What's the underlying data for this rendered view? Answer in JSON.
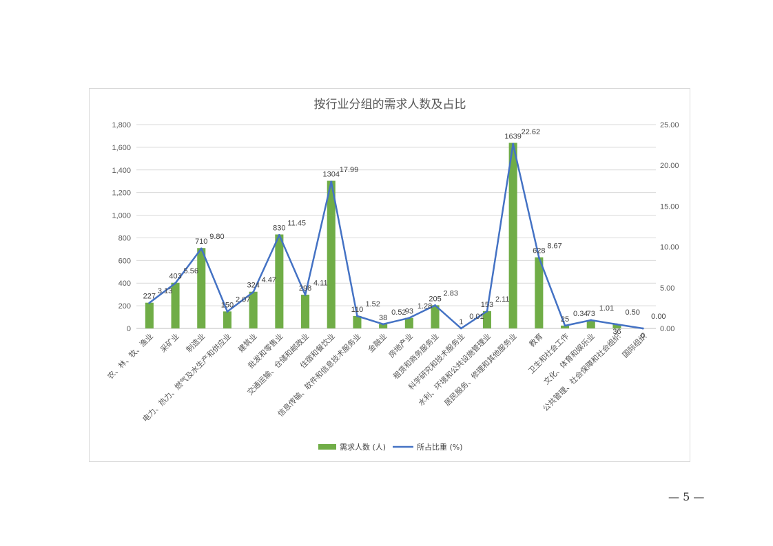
{
  "page": {
    "number": "— 5 —"
  },
  "chart_data": {
    "type": "bar",
    "title": "按行业分组的需求人数及占比",
    "categories": [
      "农、林、牧、渔业",
      "采矿业",
      "制造业",
      "电力、热力、燃气及水生产和供应业",
      "建筑业",
      "批发和零售业",
      "交通运输、仓储和邮政业",
      "住宿和餐饮业",
      "信息传输、软件和信息技术服务业",
      "金融业",
      "房地产业",
      "租赁和商务服务业",
      "科学研究和技术服务业",
      "水利、环境和公共设施管理业",
      "居民服务、修理和其他服务业",
      "教育",
      "卫生和社会工作",
      "文化、体育和娱乐业",
      "公共管理、社会保障和社会组织",
      "国际组织"
    ],
    "series": [
      {
        "name": "需求人数 (人)",
        "type": "bar",
        "axis": "left",
        "color": "#70ad47",
        "values": [
          227,
          403,
          710,
          150,
          324,
          830,
          298,
          1304,
          110,
          38,
          93,
          205,
          1,
          153,
          1639,
          628,
          25,
          73,
          36,
          0
        ],
        "labels": [
          "227",
          "403",
          "710",
          "150",
          "324",
          "830",
          "298",
          "1304",
          "110",
          "38",
          "93",
          "205",
          "1",
          "153",
          "1639",
          "628",
          "25",
          "73",
          "36",
          "0"
        ]
      },
      {
        "name": "所占比重 (%)",
        "type": "line",
        "axis": "right",
        "color": "#4472c4",
        "values": [
          3.13,
          5.56,
          9.8,
          2.07,
          4.47,
          11.45,
          4.11,
          17.99,
          1.52,
          0.52,
          1.28,
          2.83,
          0.01,
          2.11,
          22.62,
          8.67,
          0.34,
          1.01,
          0.5,
          0.0
        ],
        "labels": [
          "3.13",
          "5.56",
          "9.80",
          "2.07",
          "4.47",
          "11.45",
          "4.11",
          "17.99",
          "1.52",
          "0.52",
          "1.28",
          "2.83",
          "0.01",
          "2.11",
          "22.62",
          "8.67",
          "0.34",
          "1.01",
          "0.50",
          "0.00"
        ]
      }
    ],
    "y_left": {
      "ylim": [
        0,
        1800
      ],
      "ticks": [
        "0",
        "200",
        "400",
        "600",
        "800",
        "1,000",
        "1,200",
        "1,400",
        "1,600",
        "1,800"
      ],
      "tick_values": [
        0,
        200,
        400,
        600,
        800,
        1000,
        1200,
        1400,
        1600,
        1800
      ]
    },
    "y_right": {
      "ylim": [
        0,
        25
      ],
      "ticks": [
        "0.00",
        "5.00",
        "10.00",
        "15.00",
        "20.00",
        "25.00"
      ],
      "tick_values": [
        0,
        5,
        10,
        15,
        20,
        25
      ]
    },
    "grid": true,
    "legend": "bottom",
    "xlabel": "",
    "ylabel": ""
  }
}
